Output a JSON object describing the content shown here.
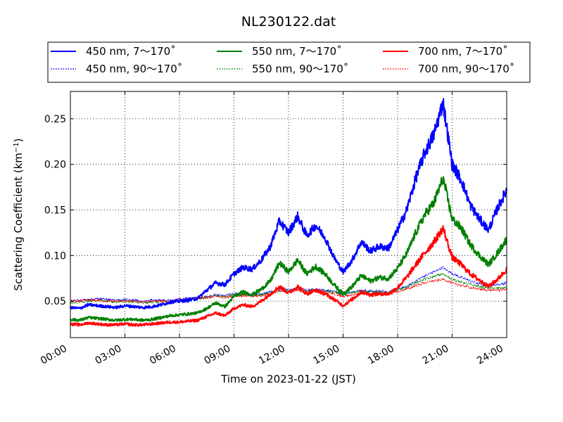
{
  "chart_data": {
    "type": "line",
    "title": "NL230122.dat",
    "xlabel": "Time on 2023-01-22 (JST)",
    "ylabel_main": "Scattering Coefficient (km",
    "ylabel_sup": "−1",
    "ylabel_end": ")",
    "xlim": [
      "00:00",
      "24:00"
    ],
    "ylim": [
      0.01,
      0.28
    ],
    "x_ticks": [
      "00:00",
      "03:00",
      "06:00",
      "09:00",
      "12:00",
      "15:00",
      "18:00",
      "21:00",
      "24:00"
    ],
    "y_ticks": [
      0.05,
      0.1,
      0.15,
      0.2,
      0.25
    ],
    "y_tick_labels": [
      "0.05",
      "0.10",
      "0.15",
      "0.20",
      "0.25"
    ],
    "grid": true,
    "legend_position": "top",
    "x_hours": [
      0,
      0.5,
      1,
      1.5,
      2,
      2.5,
      3,
      3.5,
      4,
      4.5,
      5,
      5.5,
      6,
      6.5,
      7,
      7.5,
      8,
      8.5,
      9,
      9.5,
      10,
      10.5,
      11,
      11.5,
      12,
      12.5,
      13,
      13.5,
      14,
      14.5,
      15,
      15.5,
      16,
      16.5,
      17,
      17.5,
      18,
      18.5,
      19,
      19.5,
      20,
      20.5,
      21,
      21.5,
      22,
      22.5,
      23,
      23.5,
      24
    ],
    "series": [
      {
        "name": "450 nm, 7～170˚",
        "color": "#0000ff",
        "style": "solid",
        "values": [
          0.043,
          0.042,
          0.046,
          0.045,
          0.044,
          0.043,
          0.045,
          0.044,
          0.043,
          0.044,
          0.046,
          0.049,
          0.05,
          0.051,
          0.053,
          0.062,
          0.07,
          0.068,
          0.08,
          0.087,
          0.085,
          0.095,
          0.11,
          0.138,
          0.125,
          0.143,
          0.122,
          0.133,
          0.12,
          0.098,
          0.082,
          0.095,
          0.115,
          0.105,
          0.11,
          0.108,
          0.128,
          0.15,
          0.185,
          0.213,
          0.233,
          0.268,
          0.2,
          0.183,
          0.155,
          0.14,
          0.128,
          0.152,
          0.172
        ]
      },
      {
        "name": "450 nm, 90～170˚",
        "color": "#0000ff",
        "style": "dotted",
        "values": [
          0.05,
          0.051,
          0.052,
          0.053,
          0.052,
          0.051,
          0.052,
          0.051,
          0.05,
          0.051,
          0.051,
          0.051,
          0.052,
          0.053,
          0.054,
          0.055,
          0.057,
          0.056,
          0.058,
          0.058,
          0.057,
          0.058,
          0.06,
          0.063,
          0.062,
          0.064,
          0.062,
          0.063,
          0.062,
          0.061,
          0.058,
          0.06,
          0.062,
          0.061,
          0.061,
          0.06,
          0.063,
          0.066,
          0.072,
          0.078,
          0.082,
          0.087,
          0.08,
          0.076,
          0.072,
          0.069,
          0.067,
          0.068,
          0.07
        ]
      },
      {
        "name": "550 nm, 7～170˚",
        "color": "#008000",
        "style": "solid",
        "values": [
          0.03,
          0.029,
          0.032,
          0.031,
          0.03,
          0.029,
          0.03,
          0.03,
          0.029,
          0.03,
          0.032,
          0.034,
          0.035,
          0.036,
          0.037,
          0.042,
          0.048,
          0.044,
          0.055,
          0.06,
          0.057,
          0.063,
          0.072,
          0.092,
          0.082,
          0.095,
          0.08,
          0.088,
          0.08,
          0.068,
          0.058,
          0.066,
          0.078,
          0.072,
          0.076,
          0.075,
          0.086,
          0.102,
          0.125,
          0.145,
          0.158,
          0.185,
          0.14,
          0.13,
          0.112,
          0.1,
          0.09,
          0.103,
          0.118
        ]
      },
      {
        "name": "550 nm, 90～170˚",
        "color": "#008000",
        "style": "dotted",
        "values": [
          0.048,
          0.049,
          0.05,
          0.051,
          0.05,
          0.049,
          0.05,
          0.049,
          0.048,
          0.049,
          0.049,
          0.05,
          0.051,
          0.052,
          0.053,
          0.054,
          0.056,
          0.055,
          0.057,
          0.057,
          0.056,
          0.057,
          0.059,
          0.062,
          0.061,
          0.063,
          0.061,
          0.062,
          0.061,
          0.06,
          0.057,
          0.059,
          0.061,
          0.06,
          0.06,
          0.059,
          0.062,
          0.065,
          0.07,
          0.074,
          0.077,
          0.08,
          0.074,
          0.071,
          0.068,
          0.066,
          0.064,
          0.064,
          0.065
        ]
      },
      {
        "name": "700 nm, 7～170˚",
        "color": "#ff0000",
        "style": "solid",
        "values": [
          0.025,
          0.024,
          0.026,
          0.025,
          0.024,
          0.024,
          0.025,
          0.024,
          0.024,
          0.025,
          0.026,
          0.027,
          0.027,
          0.028,
          0.029,
          0.033,
          0.037,
          0.034,
          0.042,
          0.046,
          0.044,
          0.05,
          0.058,
          0.066,
          0.059,
          0.066,
          0.058,
          0.062,
          0.058,
          0.052,
          0.045,
          0.052,
          0.06,
          0.057,
          0.058,
          0.058,
          0.065,
          0.076,
          0.09,
          0.103,
          0.115,
          0.13,
          0.098,
          0.09,
          0.08,
          0.073,
          0.066,
          0.074,
          0.085
        ]
      },
      {
        "name": "700 nm, 90～170˚",
        "color": "#ff0000",
        "style": "dotted",
        "values": [
          0.05,
          0.05,
          0.051,
          0.051,
          0.05,
          0.05,
          0.05,
          0.05,
          0.049,
          0.05,
          0.05,
          0.05,
          0.051,
          0.052,
          0.053,
          0.054,
          0.055,
          0.054,
          0.056,
          0.056,
          0.055,
          0.056,
          0.058,
          0.061,
          0.06,
          0.062,
          0.06,
          0.061,
          0.06,
          0.058,
          0.055,
          0.057,
          0.059,
          0.058,
          0.058,
          0.058,
          0.06,
          0.063,
          0.067,
          0.07,
          0.072,
          0.074,
          0.07,
          0.067,
          0.065,
          0.063,
          0.062,
          0.062,
          0.063
        ]
      }
    ]
  }
}
